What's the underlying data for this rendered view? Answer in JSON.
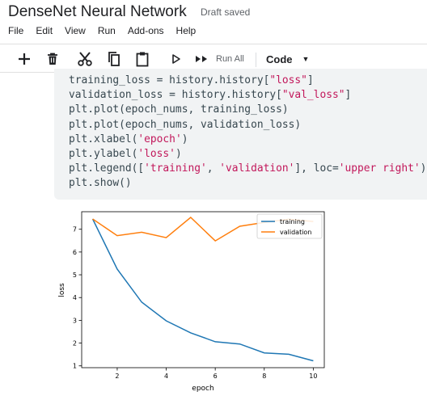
{
  "app": {
    "title": "DenseNet Neural Network",
    "status": "Draft saved"
  },
  "menu": [
    "File",
    "Edit",
    "View",
    "Run",
    "Add-ons",
    "Help"
  ],
  "toolbar": {
    "icons": [
      "plus-icon",
      "trash-icon",
      "scissors-icon",
      "copy-icon",
      "paste-icon",
      "run-icon",
      "run-all-icon"
    ],
    "run_all_label": "Run All",
    "cell_type": "Code"
  },
  "code": {
    "lines": [
      [
        {
          "t": "training_loss = history.history["
        },
        {
          "t": "\"loss\"",
          "s": 1
        },
        {
          "t": "]"
        }
      ],
      [
        {
          "t": "validation_loss = history.history["
        },
        {
          "t": "\"val_loss\"",
          "s": 1
        },
        {
          "t": "]"
        }
      ],
      [
        {
          "t": "plt.plot(epoch_nums, training_loss)"
        }
      ],
      [
        {
          "t": "plt.plot(epoch_nums, validation_loss)"
        }
      ],
      [
        {
          "t": "plt.xlabel("
        },
        {
          "t": "'epoch'",
          "s": 1
        },
        {
          "t": ")"
        }
      ],
      [
        {
          "t": "plt.ylabel("
        },
        {
          "t": "'loss'",
          "s": 1
        },
        {
          "t": ")"
        }
      ],
      [
        {
          "t": "plt.legend(["
        },
        {
          "t": "'training'",
          "s": 1
        },
        {
          "t": ", "
        },
        {
          "t": "'validation'",
          "s": 1
        },
        {
          "t": "], loc="
        },
        {
          "t": "'upper right'",
          "s": 1
        },
        {
          "t": ")"
        }
      ],
      [
        {
          "t": "plt.show()"
        }
      ]
    ]
  },
  "chart_data": {
    "type": "line",
    "x": [
      1,
      2,
      3,
      4,
      5,
      6,
      7,
      8,
      9,
      10
    ],
    "series": [
      {
        "name": "training",
        "color": "#1f77b4",
        "values": [
          7.45,
          5.25,
          3.8,
          2.98,
          2.45,
          2.06,
          1.96,
          1.57,
          1.51,
          1.22
        ]
      },
      {
        "name": "validation",
        "color": "#ff7f0e",
        "values": [
          7.45,
          6.72,
          6.87,
          6.63,
          7.52,
          6.49,
          7.13,
          7.3,
          7.44,
          7.34
        ]
      }
    ],
    "xlabel": "epoch",
    "ylabel": "loss",
    "xticks": [
      2,
      4,
      6,
      8,
      10
    ],
    "yticks": [
      1,
      2,
      3,
      4,
      5,
      6,
      7
    ],
    "xlim": [
      0.55,
      10.45
    ],
    "ylim": [
      0.92,
      7.77
    ],
    "legend_loc": "upper right",
    "grid": false
  }
}
